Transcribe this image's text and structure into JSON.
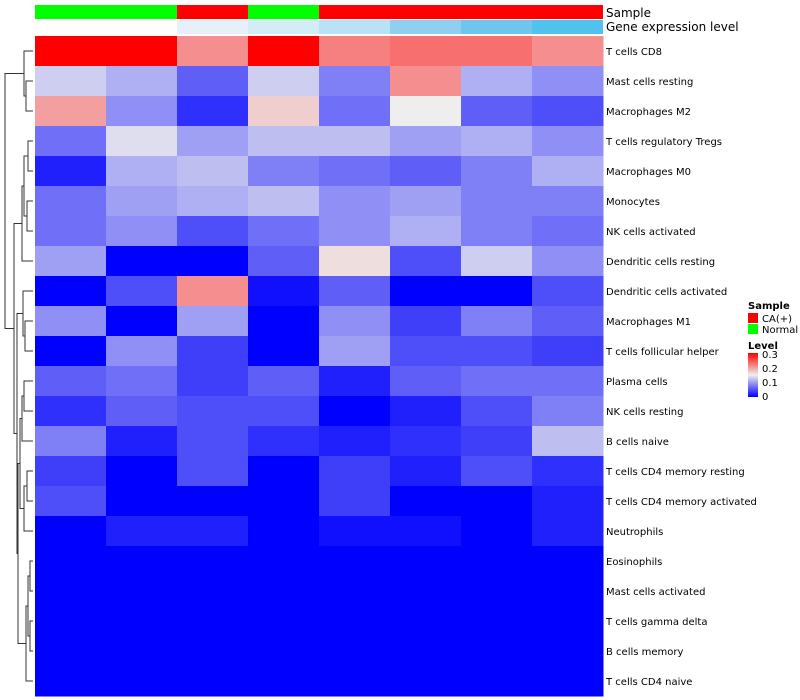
{
  "chart_data": {
    "type": "heatmap",
    "title": "",
    "n_columns": 8,
    "annotations": {
      "sample": {
        "label": "Sample",
        "values": [
          "Normal",
          "Normal",
          "CA(+)",
          "Normal",
          "CA(+)",
          "CA(+)",
          "CA(+)",
          "CA(+)"
        ]
      },
      "gene_expression": {
        "label": "Gene expression level",
        "values": [
          "#ffffff",
          "#ffffff",
          "#e6f0f8",
          "#d4ecf6",
          "#b8e2f6",
          "#8fd0f0",
          "#6ec6ee",
          "#4fc2ef"
        ]
      }
    },
    "rows": [
      {
        "name": "T cells CD8",
        "values": [
          0.3,
          0.31,
          0.21,
          0.31,
          0.22,
          0.23,
          0.23,
          0.21
        ]
      },
      {
        "name": "Mast cells resting",
        "values": [
          0.13,
          0.11,
          0.06,
          0.13,
          0.08,
          0.21,
          0.11,
          0.09
        ]
      },
      {
        "name": "Macrophages M2",
        "values": [
          0.2,
          0.09,
          0.03,
          0.17,
          0.07,
          0.15,
          0.06,
          0.05
        ]
      },
      {
        "name": "T cells regulatory  Tregs",
        "values": [
          0.07,
          0.14,
          0.1,
          0.12,
          0.12,
          0.1,
          0.11,
          0.09
        ]
      },
      {
        "name": "Macrophages M0",
        "values": [
          0.02,
          0.11,
          0.12,
          0.08,
          0.07,
          0.06,
          0.08,
          0.11
        ]
      },
      {
        "name": "Monocytes",
        "values": [
          0.07,
          0.1,
          0.11,
          0.12,
          0.09,
          0.1,
          0.08,
          0.08
        ]
      },
      {
        "name": "NK cells activated",
        "values": [
          0.07,
          0.09,
          0.05,
          0.07,
          0.09,
          0.11,
          0.08,
          0.07
        ]
      },
      {
        "name": "Dendritic cells resting",
        "values": [
          0.1,
          0.0,
          0.0,
          0.06,
          0.16,
          0.05,
          0.13,
          0.09
        ]
      },
      {
        "name": "Dendritic cells activated",
        "values": [
          0.0,
          0.05,
          0.21,
          0.01,
          0.06,
          0.0,
          0.0,
          0.05
        ]
      },
      {
        "name": "Macrophages M1",
        "values": [
          0.09,
          0.0,
          0.1,
          0.0,
          0.09,
          0.04,
          0.08,
          0.06
        ]
      },
      {
        "name": "T cells follicular helper",
        "values": [
          0.0,
          0.09,
          0.04,
          0.0,
          0.1,
          0.05,
          0.05,
          0.04
        ]
      },
      {
        "name": "Plasma cells",
        "values": [
          0.06,
          0.07,
          0.04,
          0.06,
          0.02,
          0.06,
          0.07,
          0.07
        ]
      },
      {
        "name": "NK cells resting",
        "values": [
          0.03,
          0.06,
          0.05,
          0.05,
          0.0,
          0.02,
          0.05,
          0.08
        ]
      },
      {
        "name": "B cells naive",
        "values": [
          0.08,
          0.02,
          0.05,
          0.03,
          0.02,
          0.03,
          0.04,
          0.12
        ]
      },
      {
        "name": "T cells CD4 memory resting",
        "values": [
          0.04,
          0.0,
          0.05,
          0.0,
          0.04,
          0.02,
          0.05,
          0.03
        ]
      },
      {
        "name": "T cells CD4 memory activated",
        "values": [
          0.05,
          0.0,
          0.0,
          0.0,
          0.04,
          0.0,
          0.0,
          0.02
        ]
      },
      {
        "name": "Neutrophils",
        "values": [
          0.0,
          0.02,
          0.02,
          0.0,
          0.01,
          0.01,
          0.0,
          0.02
        ]
      },
      {
        "name": "Eosinophils",
        "values": [
          0.0,
          0.0,
          0.0,
          0.0,
          0.0,
          0.0,
          0.0,
          0.0
        ]
      },
      {
        "name": "Mast cells activated",
        "values": [
          0.0,
          0.0,
          0.0,
          0.0,
          0.0,
          0.0,
          0.0,
          0.0
        ]
      },
      {
        "name": "T cells gamma delta",
        "values": [
          0.0,
          0.0,
          0.0,
          0.0,
          0.0,
          0.0,
          0.0,
          0.0
        ]
      },
      {
        "name": "B cells memory",
        "values": [
          0.0,
          0.0,
          0.0,
          0.0,
          0.0,
          0.0,
          0.0,
          0.0
        ]
      },
      {
        "name": "T cells CD4 naive",
        "values": [
          0.0,
          0.0,
          0.0,
          0.0,
          0.0,
          0.0,
          0.0,
          0.0
        ]
      }
    ],
    "color_scale": {
      "min": 0,
      "max": 0.3,
      "colors": [
        "#0000ff",
        "#eeeeee",
        "#ff0000"
      ],
      "midpoint": 0.15
    },
    "legend": {
      "sample": {
        "title": "Sample",
        "entries": [
          {
            "label": "CA(+)",
            "color": "#ff0000"
          },
          {
            "label": "Normal",
            "color": "#00ff00"
          }
        ]
      },
      "level": {
        "title": "Level",
        "ticks": [
          {
            "label": "0.3",
            "value": 0.3
          },
          {
            "label": "0.2",
            "value": 0.2
          },
          {
            "label": "0.1",
            "value": 0.1
          },
          {
            "label": "0",
            "value": 0
          }
        ]
      }
    },
    "sample_colors": {
      "CA(+)": "#ff0000",
      "Normal": "#00ff00"
    }
  }
}
